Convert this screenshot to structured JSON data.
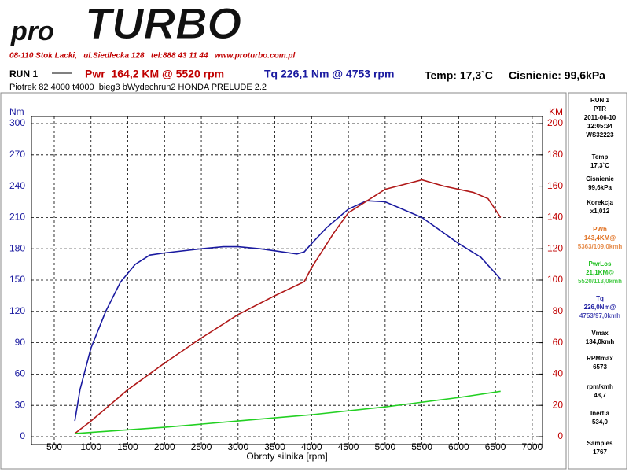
{
  "logo": {
    "pre": "pro",
    "main": "TURBO"
  },
  "address": "08-110 Stok Lacki,   ul.Siedlecka 128   tel:888 43 11 44   www.proturbo.com.pl",
  "header": {
    "run": "RUN 1",
    "pwr": "Pwr  164,2 KM @ 5520 rpm",
    "tq": "Tq 226,1 Nm @ 4753 rpm",
    "temp": "Temp: 17,3`C",
    "pressure": "Cisnienie: 99,6kPa",
    "subtitle": "Piotrek 82 4000 t4000  bieg3 bWydechrun2 HONDA PRELUDE 2.2"
  },
  "side_panel": [
    {
      "lines": [
        "RUN 1",
        "PTR",
        "2011-06-10",
        "12:05:34",
        "WS32223"
      ]
    },
    {
      "lines": [
        "Temp",
        "17,3`C"
      ]
    },
    {
      "lines": [
        "Cisnienie",
        "99,6kPa"
      ]
    },
    {
      "lines": [
        "Korekcja",
        "x1,012"
      ]
    },
    {
      "color": "#e07020",
      "lines": [
        "PWh",
        "143,4KM@",
        "5363/109,0kmh"
      ]
    },
    {
      "color": "#22c022",
      "lines": [
        "PwrLos",
        "21,1KM@",
        "5520/113,0kmh"
      ]
    },
    {
      "color": "#1a1aa0",
      "lines": [
        "Tq",
        "226,0Nm@",
        "4753/97,0kmh"
      ]
    },
    {
      "lines": [
        "Vmax",
        "134,0kmh"
      ]
    },
    {
      "lines": [
        "RPMmax",
        "6573"
      ]
    },
    {
      "lines": [
        "rpm/kmh",
        "48,7"
      ]
    },
    {
      "lines": [
        "Inertia",
        "534,0"
      ]
    },
    {
      "lines": [
        "Samples",
        "1767"
      ]
    }
  ],
  "chart_data": {
    "type": "line",
    "y_label": "Nm",
    "y2_label": "KM",
    "x_label": "Obroty silnika [rpm]",
    "xlim": [
      190,
      7140
    ],
    "xticks": [
      500,
      1000,
      1500,
      2000,
      2500,
      3000,
      3500,
      4000,
      4500,
      5000,
      5500,
      6000,
      6500,
      7000
    ],
    "ylim": [
      0,
      300
    ],
    "yticks": [
      0,
      30,
      60,
      90,
      120,
      150,
      180,
      210,
      240,
      270,
      300
    ],
    "y2lim": [
      0,
      200
    ],
    "y2ticks": [
      0,
      20,
      40,
      60,
      80,
      100,
      120,
      140,
      160,
      180,
      200
    ],
    "grid": true,
    "series": [
      {
        "color": "#1a1aa0",
        "x": [
          780,
          850,
          1000,
          1200,
          1400,
          1600,
          1800,
          2000,
          2500,
          2800,
          3000,
          3300,
          3500,
          3800,
          3900,
          4000,
          4200,
          4500,
          4750,
          5000,
          5500,
          6000,
          6300,
          6570
        ],
        "values": [
          15,
          45,
          85,
          120,
          148,
          165,
          174,
          176,
          180,
          182,
          182,
          180,
          178,
          175,
          177,
          185,
          200,
          218,
          226,
          225,
          210,
          185,
          172,
          151
        ]
      },
      {
        "color": "#b01818",
        "axis": "y2",
        "x": [
          780,
          1000,
          1500,
          2000,
          2500,
          3000,
          3500,
          3900,
          4000,
          4300,
          4500,
          5000,
          5500,
          5800,
          6200,
          6400,
          6570
        ],
        "values": [
          2,
          10,
          30,
          47,
          63,
          78,
          90,
          99,
          108,
          130,
          143,
          158,
          164,
          160,
          156,
          152,
          140
        ]
      },
      {
        "color": "#22d022",
        "axis": "y2",
        "x": [
          780,
          2000,
          3000,
          4000,
          5000,
          6000,
          6570
        ],
        "values": [
          2,
          6,
          10,
          14,
          19,
          25,
          29
        ]
      }
    ]
  }
}
